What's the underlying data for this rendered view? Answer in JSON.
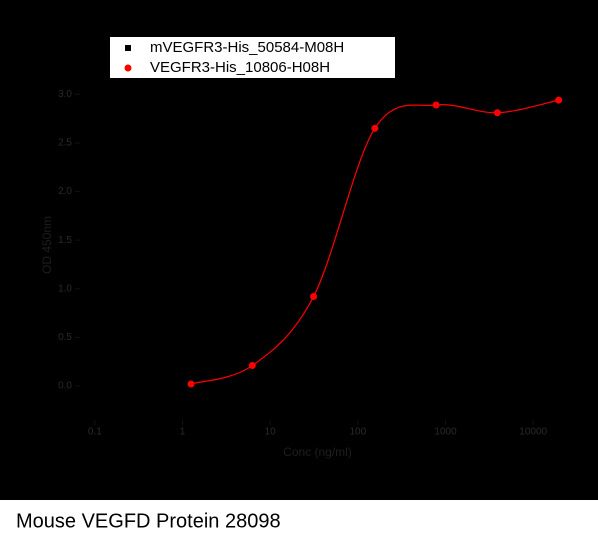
{
  "chart_data": {
    "type": "scatter",
    "caption": "Mouse VEGFD Protein 28098",
    "xlabel": "Conc (ng/ml)",
    "ylabel": "OD 450nm",
    "xlog": true,
    "legend": "top-left",
    "x": [
      1.25,
      6.25,
      31.25,
      156.25,
      781.25,
      3906.25,
      19531.25
    ],
    "series": [
      {
        "name": "mVEGFR3-His_50584-M08H",
        "color": "#000000",
        "marker": "square",
        "values": [
          null,
          null,
          null,
          null,
          null,
          null,
          null
        ]
      },
      {
        "name": "VEGFR3-His_10806-H08H",
        "color": "#ff0000",
        "marker": "circle",
        "fit": true,
        "values": [
          0.02,
          0.21,
          0.92,
          2.65,
          2.89,
          2.81,
          2.94
        ]
      }
    ],
    "xlim": [
      0.04,
      30000
    ],
    "xticks": [
      0.1,
      1,
      10,
      100,
      1000,
      10000
    ],
    "ylim": [
      -0.35,
      3.25
    ],
    "yticks": [
      {
        "value": 0,
        "label": "0.0"
      },
      {
        "value": 0.5,
        "label": "0.5"
      },
      {
        "value": 1,
        "label": "1.0"
      },
      {
        "value": 1.5,
        "label": "1.5"
      },
      {
        "value": 2,
        "label": "2.0"
      },
      {
        "value": 2.5,
        "label": "2.5"
      },
      {
        "value": 3,
        "label": "3.0"
      }
    ]
  }
}
